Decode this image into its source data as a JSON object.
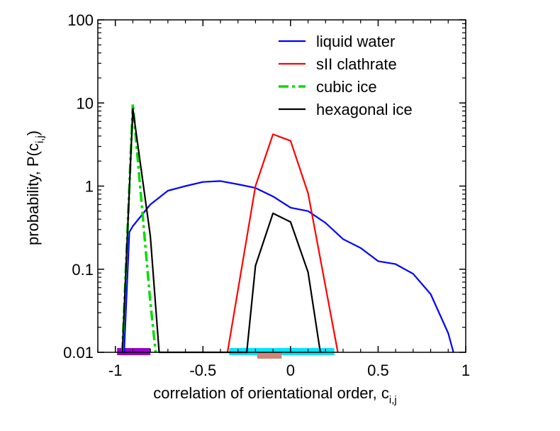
{
  "chart_data": {
    "type": "line",
    "xlabel": "correlation of orientational order, c",
    "xlabel_sub": "i,j",
    "ylabel": "probability, P(c",
    "ylabel_sub": "i,j",
    "ylabel_close": ")",
    "xlim": [
      -1.1,
      1
    ],
    "ylim": [
      0.01,
      100
    ],
    "yscale": "log",
    "x_ticks": [
      -1,
      -0.5,
      0,
      0.5,
      1
    ],
    "x_tick_labels": [
      "-1",
      "-0.5",
      "0",
      "0.5",
      "1"
    ],
    "y_ticks": [
      0.01,
      0.1,
      1,
      10,
      100
    ],
    "y_tick_labels": [
      "0.01",
      "0.1",
      "1",
      "10",
      "100"
    ],
    "legend_position": "top-right",
    "series": [
      {
        "name": "liquid water",
        "color": "#0000ff",
        "dash": "solid",
        "points": [
          [
            -0.95,
            0.01
          ],
          [
            -0.92,
            0.28
          ],
          [
            -0.9,
            0.33
          ],
          [
            -0.8,
            0.6
          ],
          [
            -0.7,
            0.88
          ],
          [
            -0.6,
            1.0
          ],
          [
            -0.5,
            1.12
          ],
          [
            -0.4,
            1.15
          ],
          [
            -0.3,
            1.05
          ],
          [
            -0.2,
            0.95
          ],
          [
            -0.1,
            0.75
          ],
          [
            0.0,
            0.55
          ],
          [
            0.1,
            0.5
          ],
          [
            0.2,
            0.36
          ],
          [
            0.3,
            0.23
          ],
          [
            0.4,
            0.18
          ],
          [
            0.5,
            0.125
          ],
          [
            0.6,
            0.115
          ],
          [
            0.7,
            0.088
          ],
          [
            0.8,
            0.05
          ],
          [
            0.9,
            0.017
          ],
          [
            0.93,
            0.01
          ]
        ]
      },
      {
        "name": "sII clathrate",
        "color": "#ff0000",
        "dash": "solid",
        "points": [
          [
            -0.36,
            0.01
          ],
          [
            -0.2,
            1.0
          ],
          [
            -0.1,
            4.2
          ],
          [
            0.0,
            3.5
          ],
          [
            0.1,
            0.82
          ],
          [
            0.27,
            0.01
          ]
        ]
      },
      {
        "name": "cubic ice",
        "color": "#00dd00",
        "dash": "dashed",
        "points": [
          [
            -0.96,
            0.01
          ],
          [
            -0.9,
            9.8
          ],
          [
            -0.8,
            0.04
          ],
          [
            -0.77,
            0.01
          ]
        ]
      },
      {
        "name": "hexagonal ice",
        "color": "#000000",
        "dash": "solid",
        "points": [
          [
            -0.96,
            0.01
          ],
          [
            -0.9,
            8.5
          ],
          [
            -0.8,
            0.25
          ],
          [
            -0.75,
            0.01
          ],
          [
            -0.25,
            0.01
          ],
          [
            -0.2,
            0.11
          ],
          [
            -0.1,
            0.47
          ],
          [
            0.0,
            0.37
          ],
          [
            0.1,
            0.092
          ],
          [
            0.17,
            0.01
          ]
        ]
      }
    ],
    "bars_on_x_axis": [
      {
        "color": "#9900cc",
        "x_range": [
          -0.99,
          -0.8
        ]
      },
      {
        "color": "#00e5ff",
        "x_range": [
          -0.35,
          0.25
        ]
      },
      {
        "color": "#cc8877",
        "x_range": [
          -0.19,
          -0.05
        ]
      }
    ]
  }
}
